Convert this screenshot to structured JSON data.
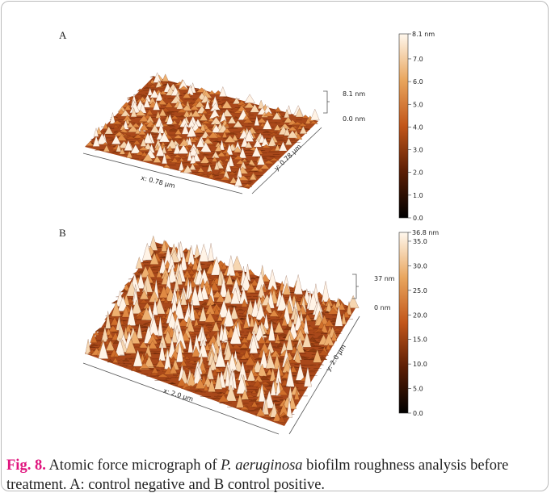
{
  "panels": [
    {
      "label": "A",
      "colorbar": {
        "max_label": "8.1 nm",
        "ticks": [
          "7.0",
          "6.0",
          "5.0",
          "4.0",
          "3.0",
          "2.0",
          "1.0",
          "0.0"
        ]
      },
      "z_top": "8.1 nm",
      "z_bottom": "0.0 nm",
      "x_axis": "x: 0.78 µm",
      "y_axis": "y: 0.78 µm"
    },
    {
      "label": "B",
      "colorbar": {
        "max_label": "36.8 nm",
        "ticks": [
          "35.0",
          "30.0",
          "25.0",
          "20.0",
          "15.0",
          "10.0",
          "5.0",
          "0.0"
        ]
      },
      "z_top": "37 nm",
      "z_bottom": "0 nm",
      "x_axis": "x: 2.0 µm",
      "y_axis": "y: 2.0 µm"
    }
  ],
  "caption": {
    "figure_label": "Fig. 8.",
    "text_1": "Atomic force micrograph of ",
    "species": "P. aeruginosa",
    "text_2": " biofilm roughness analysis before treatment. A: control negative and B control positive."
  }
}
